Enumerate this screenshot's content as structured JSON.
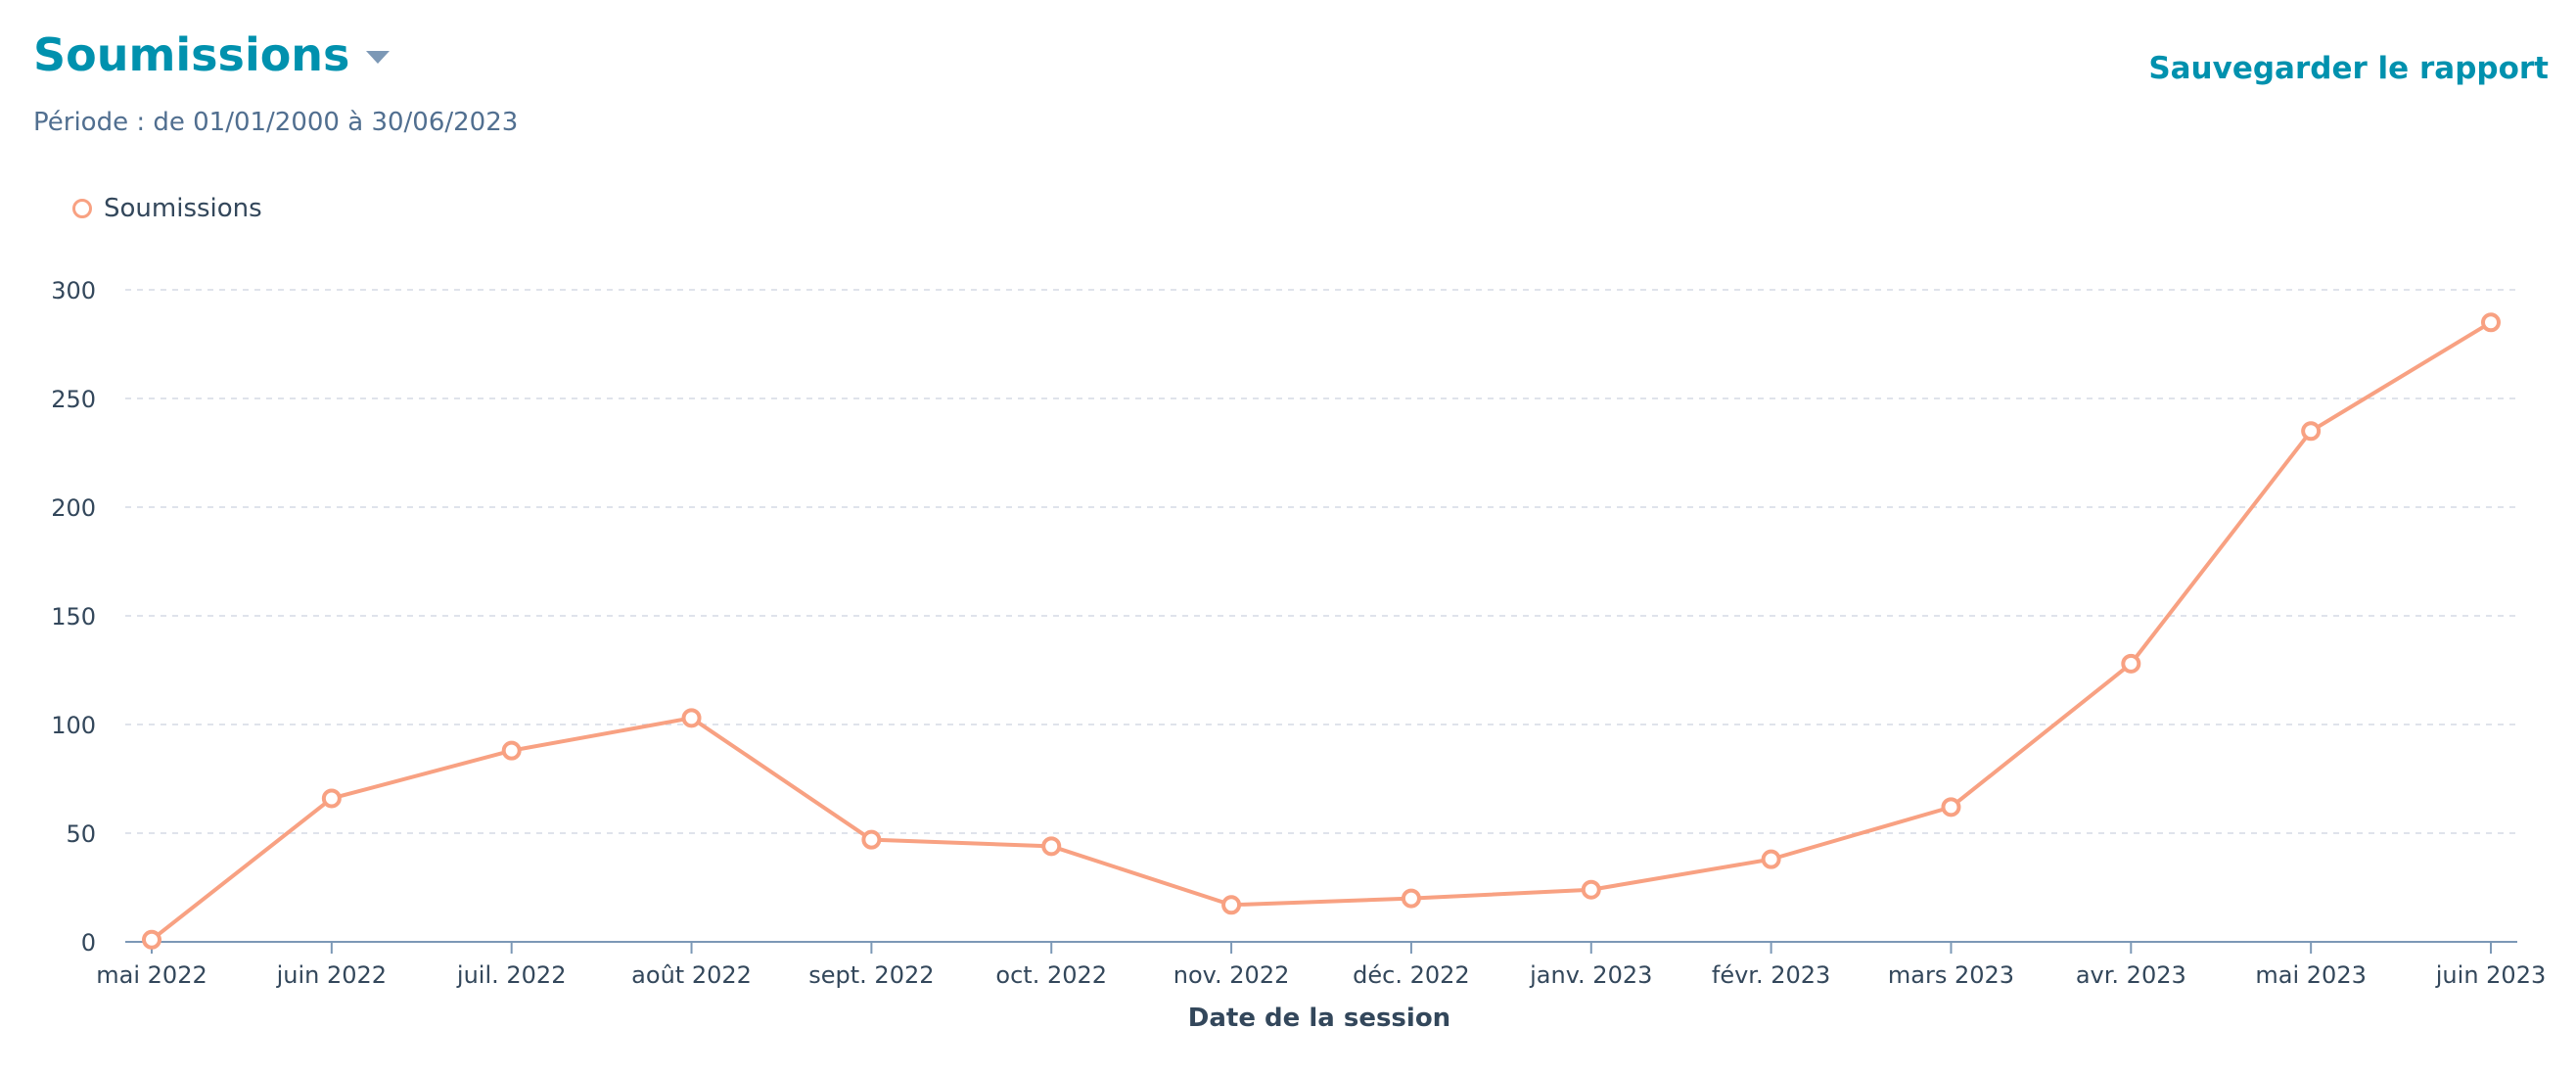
{
  "header": {
    "title": "Soumissions",
    "period": "Période : de 01/01/2000 à 30/06/2023",
    "save_label": "Sauvegarder le rapport"
  },
  "colors": {
    "accent": "#0091ae",
    "series": "#f8a182",
    "grid": "#dfe3eb",
    "axis": "#7c98b6"
  },
  "chart_data": {
    "type": "line",
    "xlabel": "Date de la session",
    "ylabel": "",
    "ylim": [
      0,
      300
    ],
    "yticks": [
      0,
      50,
      100,
      150,
      200,
      250,
      300
    ],
    "grid": true,
    "legend_position": "top-left",
    "categories": [
      "mai 2022",
      "juin 2022",
      "juil. 2022",
      "août 2022",
      "sept. 2022",
      "oct. 2022",
      "nov. 2022",
      "déc. 2022",
      "janv. 2023",
      "févr. 2023",
      "mars 2023",
      "avr. 2023",
      "mai 2023",
      "juin 2023"
    ],
    "series": [
      {
        "name": "Soumissions",
        "values": [
          1,
          66,
          88,
          103,
          47,
          44,
          17,
          20,
          24,
          38,
          62,
          128,
          235,
          285
        ]
      }
    ]
  }
}
